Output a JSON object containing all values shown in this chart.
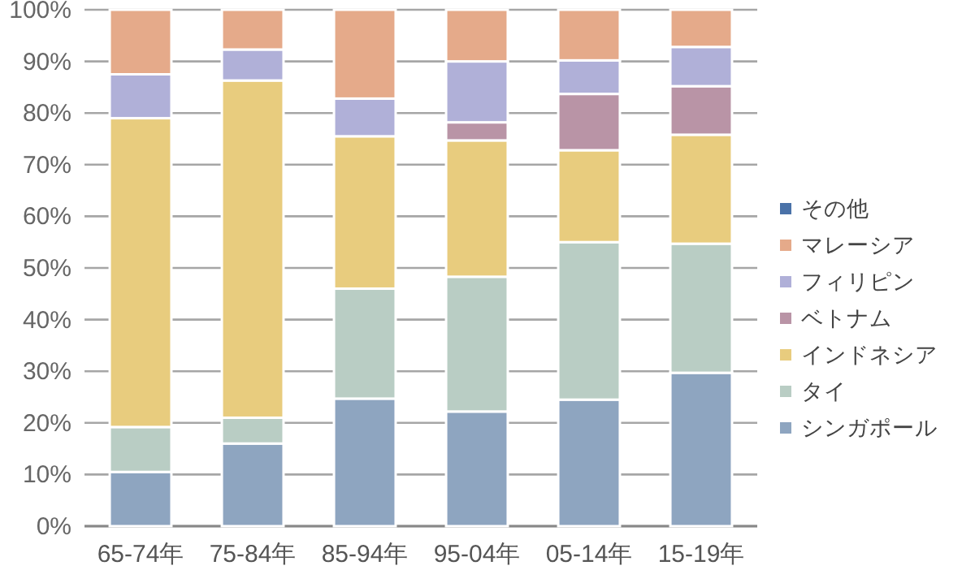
{
  "chart_data": {
    "type": "bar",
    "stacked": true,
    "categories": [
      "65-74年",
      "75-84年",
      "85-94年",
      "95-04年",
      "05-14年",
      "15-19年"
    ],
    "series": [
      {
        "name": "シンガポール",
        "color": "#8ea5c0",
        "values": [
          10.5,
          16,
          24.7,
          22.2,
          24.5,
          29.7
        ]
      },
      {
        "name": "タイ",
        "color": "#b9cdc4",
        "values": [
          8.7,
          5,
          21.3,
          26.1,
          30.5,
          25
        ]
      },
      {
        "name": "インドネシア",
        "color": "#e8cc7e",
        "values": [
          59.8,
          65.3,
          29.5,
          26.4,
          17.8,
          21.1
        ]
      },
      {
        "name": "ベトナム",
        "color": "#b994a6",
        "values": [
          0,
          0,
          0,
          3.5,
          10.9,
          9.4
        ]
      },
      {
        "name": "フィリピン",
        "color": "#b0b0d8",
        "values": [
          8.5,
          6,
          7.3,
          11.8,
          6.5,
          7.6
        ]
      },
      {
        "name": "マレーシア",
        "color": "#e5aa8a",
        "values": [
          12.5,
          7.7,
          17.2,
          10,
          9.8,
          7.2
        ]
      },
      {
        "name": "その他",
        "color": "#4a72a8",
        "values": [
          0,
          0,
          0,
          0,
          0,
          0
        ]
      }
    ],
    "ylim": [
      0,
      100
    ],
    "yticks": [
      {
        "value": 0,
        "label": "0%"
      },
      {
        "value": 10,
        "label": "10%"
      },
      {
        "value": 20,
        "label": "20%"
      },
      {
        "value": 30,
        "label": "30%"
      },
      {
        "value": 40,
        "label": "40%"
      },
      {
        "value": 50,
        "label": "50%"
      },
      {
        "value": 60,
        "label": "60%"
      },
      {
        "value": 70,
        "label": "70%"
      },
      {
        "value": 80,
        "label": "80%"
      },
      {
        "value": 90,
        "label": "90%"
      },
      {
        "value": 100,
        "label": "100%"
      }
    ],
    "grid": "y",
    "legend": "right"
  }
}
